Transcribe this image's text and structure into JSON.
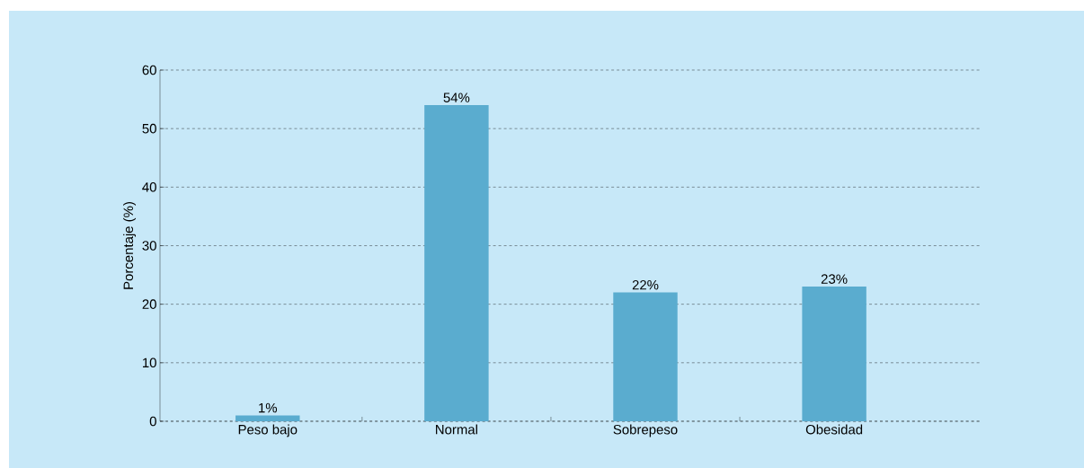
{
  "chart_data": {
    "type": "bar",
    "ylabel": "Porcentaje (%)",
    "categories": [
      "Peso bajo",
      "Normal",
      "Sobrepeso",
      "Obesidad"
    ],
    "values": [
      1,
      54,
      22,
      23
    ],
    "value_labels": [
      "1%",
      "54%",
      "22%",
      "23%"
    ],
    "color": "#5aaccf",
    "ylim": [
      0,
      60
    ],
    "yticks": [
      0,
      10,
      20,
      30,
      40,
      50,
      60
    ],
    "grid": "y"
  }
}
